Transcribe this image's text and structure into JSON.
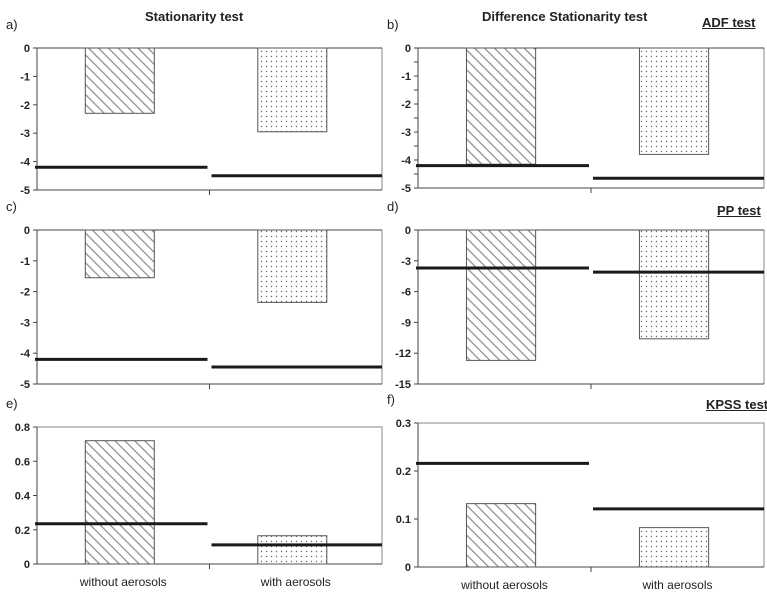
{
  "headings": {
    "left": "Stationarity test",
    "right": "Difference Stationarity test"
  },
  "test_labels": {
    "adf": "ADF test",
    "pp": "PP test",
    "kpss": "KPSS test"
  },
  "colors": {
    "bar_stroke": "#555555",
    "hatch": "#8a8a8a",
    "dots": "#6a6a6a",
    "critical_line": "#1a1a1a",
    "axis": "#444444",
    "frame": "#888888"
  },
  "chart_data": [
    {
      "panel": "a)",
      "type": "bar",
      "categories": [
        "without aerosols",
        "with aerosols"
      ],
      "values": [
        -2.3,
        -2.95
      ],
      "critical_values": [
        -4.2,
        -4.5
      ],
      "ylim": [
        -5,
        0
      ],
      "yticks": [
        0,
        -1,
        -2,
        -3,
        -4,
        -5
      ],
      "ytick_labels": [
        "0",
        "-1",
        "-2",
        "-3",
        "-4",
        "-5"
      ],
      "show_category_labels": false
    },
    {
      "panel": "b)",
      "type": "bar",
      "categories": [
        "without aerosols",
        "with aerosols"
      ],
      "values": [
        -4.15,
        -3.8
      ],
      "critical_values": [
        -4.2,
        -4.65
      ],
      "ylim": [
        -5,
        0
      ],
      "yticks": [
        0,
        -0.5,
        -1,
        -1.5,
        -2,
        -2.5,
        -3,
        -3.5,
        -4,
        -4.5,
        -5
      ],
      "ytick_labels": [
        "0",
        "",
        "-1",
        "",
        "-2",
        "",
        "-3",
        "",
        "-4",
        "",
        "-5"
      ],
      "show_category_labels": false
    },
    {
      "panel": "c)",
      "type": "bar",
      "categories": [
        "without aerosols",
        "with aerosols"
      ],
      "values": [
        -1.55,
        -2.35
      ],
      "critical_values": [
        -4.2,
        -4.45
      ],
      "ylim": [
        -5,
        0
      ],
      "yticks": [
        0,
        -1,
        -2,
        -3,
        -4,
        -5
      ],
      "ytick_labels": [
        "0",
        "-1",
        "-2",
        "-3",
        "-4",
        "-5"
      ],
      "show_category_labels": false
    },
    {
      "panel": "d)",
      "type": "bar",
      "categories": [
        "without aerosols",
        "with aerosols"
      ],
      "values": [
        -12.7,
        -10.6
      ],
      "critical_values": [
        -3.7,
        -4.1
      ],
      "ylim": [
        -15,
        0
      ],
      "yticks": [
        0,
        -3,
        -6,
        -9,
        -12,
        -15
      ],
      "ytick_labels": [
        "0",
        "-3",
        "-6",
        "-9",
        "-12",
        "-15"
      ],
      "show_category_labels": false
    },
    {
      "panel": "e)",
      "type": "bar",
      "categories": [
        "without aerosols",
        "with aerosols"
      ],
      "values": [
        0.72,
        0.165
      ],
      "critical_values": [
        0.235,
        0.112
      ],
      "ylim": [
        0,
        0.8
      ],
      "yticks": [
        0,
        0.2,
        0.4,
        0.6,
        0.8
      ],
      "ytick_labels": [
        "0",
        "0.2",
        "0.4",
        "0.6",
        "0.8"
      ],
      "show_category_labels": true
    },
    {
      "panel": "f)",
      "type": "bar",
      "categories": [
        "without aerosols",
        "with aerosols"
      ],
      "values": [
        0.132,
        0.082
      ],
      "critical_values": [
        0.216,
        0.121
      ],
      "ylim": [
        0,
        0.3
      ],
      "yticks": [
        0,
        0.1,
        0.2,
        0.3
      ],
      "ytick_labels": [
        "0",
        "0.1",
        "0.2",
        "0.3"
      ],
      "show_category_labels": true
    }
  ]
}
